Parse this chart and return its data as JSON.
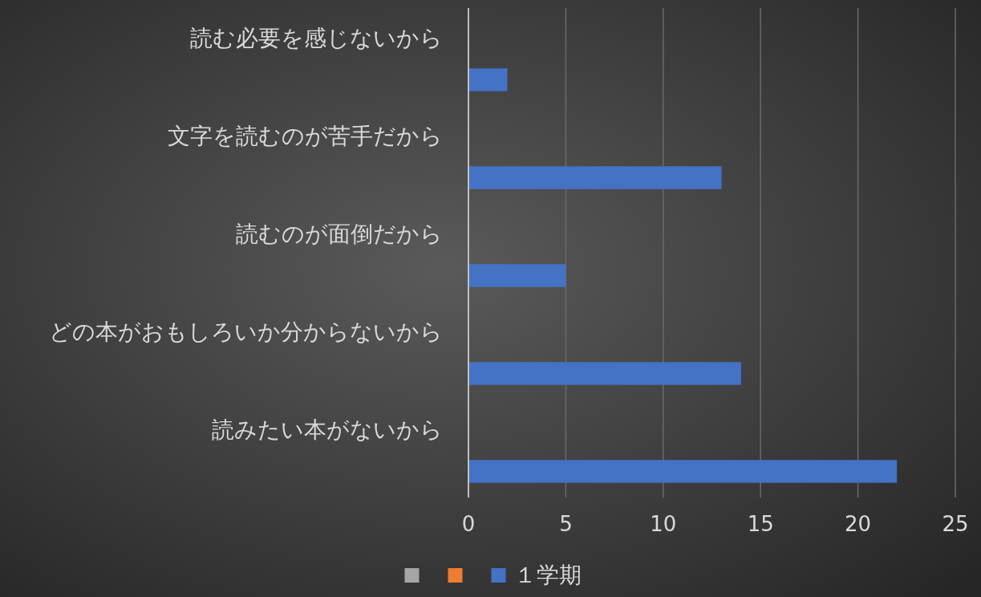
{
  "chart_data": {
    "type": "bar",
    "orientation": "horizontal",
    "categories": [
      "読む必要を感じないから",
      "文字を読むのが苦手だから",
      "読むのが面倒だから",
      "どの本がおもしろいか分からないから",
      "読みたい本がないから"
    ],
    "series": [
      {
        "color": "#a5a5a5",
        "values": [
          null,
          null,
          null,
          null,
          null
        ]
      },
      {
        "color": "#ed7d31",
        "values": [
          null,
          null,
          null,
          null,
          null
        ]
      },
      {
        "name": "１学期",
        "color": "#4472c4",
        "values": [
          2,
          13,
          5,
          14,
          22
        ]
      }
    ],
    "xlim": [
      0,
      25
    ],
    "xticks": [
      0,
      5,
      10,
      15,
      20,
      25
    ],
    "grid": "x",
    "legend": "bottom"
  }
}
